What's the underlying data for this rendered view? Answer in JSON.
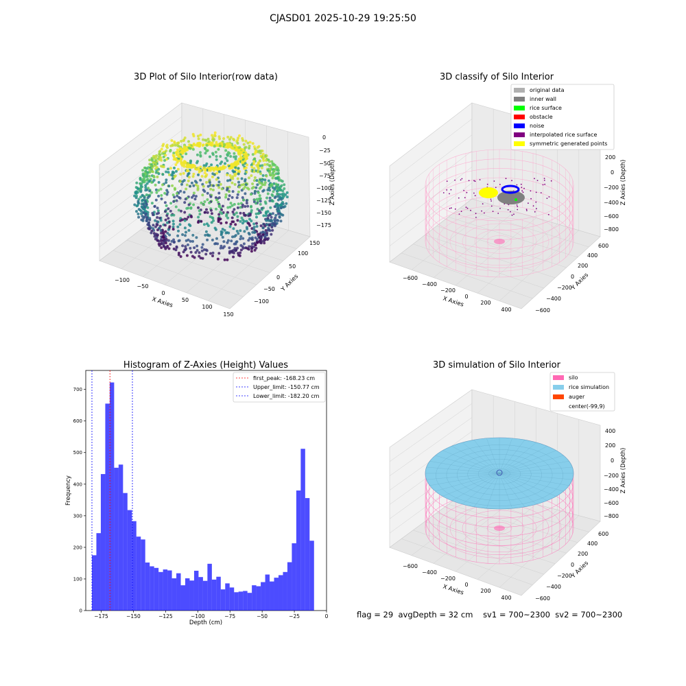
{
  "figure": {
    "suptitle": "CJASD01 2025-10-29 19:25:50"
  },
  "chart_data": [
    {
      "type": "scatter",
      "title": "3D Plot of Silo Interior(row data)",
      "xlabel": "X Axies",
      "ylabel": "Y Axies",
      "zlabel": "Z Axies (Depth)",
      "xticks": [
        "−100",
        "−50",
        "0",
        "50",
        "100",
        "150"
      ],
      "yticks": [
        "−100",
        "−50",
        "0",
        "50",
        "100",
        "150"
      ],
      "zticks": [
        "0",
        "−25",
        "−50",
        "−75",
        "−100",
        "−125",
        "−150",
        "−175"
      ],
      "zrange": [
        -185,
        0
      ],
      "colormap": "viridis"
    },
    {
      "type": "scatter",
      "title": "3D classify of Silo Interior",
      "xlabel": "X Axies",
      "ylabel": "Y Axies",
      "zlabel": "Z Axies (Depth)",
      "xticks": [
        "−600",
        "−400",
        "−200",
        "0",
        "200",
        "400"
      ],
      "yticks": [
        "−600",
        "−400",
        "−200",
        "0",
        "200",
        "400",
        "600"
      ],
      "zticks": [
        "200",
        "0",
        "−200",
        "−400",
        "−600",
        "−800"
      ],
      "legend": [
        {
          "label": "original data",
          "color": "#b0b0b0"
        },
        {
          "label": "inner wall",
          "color": "#808080"
        },
        {
          "label": "rice surface",
          "color": "#00ff00"
        },
        {
          "label": "obstacle",
          "color": "#ff0000"
        },
        {
          "label": "noise",
          "color": "#0000ff"
        },
        {
          "label": "interpolated rice surface",
          "color": "#800080"
        },
        {
          "label": "symmetric generated points",
          "color": "#ffff00"
        }
      ],
      "legend_position": "upper-right"
    },
    {
      "type": "bar",
      "title": "Histogram of Z-Axies (Height) Values",
      "xlabel": "Depth (cm)",
      "ylabel": "Frequency",
      "xlim": [
        -187,
        0
      ],
      "ylim": [
        0,
        760
      ],
      "xticks": [
        -175,
        -150,
        -125,
        -100,
        -75,
        -50,
        -25,
        0
      ],
      "xtick_labels": [
        "−175",
        "−150",
        "−125",
        "−100",
        "−75",
        "−50",
        "−25",
        "0"
      ],
      "yticks": [
        0,
        100,
        200,
        300,
        400,
        500,
        600,
        700
      ],
      "bin_start": -182.2,
      "bin_width": 3.45,
      "values": [
        175,
        245,
        432,
        655,
        722,
        452,
        462,
        372,
        318,
        283,
        234,
        225,
        152,
        140,
        135,
        122,
        130,
        127,
        102,
        118,
        80,
        102,
        95,
        126,
        106,
        94,
        148,
        98,
        107,
        67,
        86,
        73,
        58,
        60,
        62,
        56,
        80,
        77,
        90,
        114,
        92,
        104,
        112,
        122,
        153,
        213,
        380,
        512,
        356,
        221
      ],
      "bar_color": "#0000ff",
      "vlines": [
        {
          "x": -168.23,
          "color": "#ff0000",
          "label": "first_peak: -168.23 cm"
        },
        {
          "x": -150.77,
          "color": "#0000ff",
          "label": "Upper_limit: -150.77 cm"
        },
        {
          "x": -182.2,
          "color": "#0000ff",
          "label": "Lower_limit: -182.20 cm"
        }
      ],
      "legend_position": "upper-right"
    },
    {
      "type": "other",
      "title": "3D simulation of Silo Interior",
      "xlabel": "X Axies",
      "ylabel": "Y Axies",
      "zlabel": "Z Axies (Depth)",
      "xticks": [
        "−600",
        "−400",
        "−200",
        "0",
        "200",
        "400"
      ],
      "yticks": [
        "−600",
        "−400",
        "−200",
        "0",
        "200",
        "400",
        "600"
      ],
      "zticks": [
        "400",
        "200",
        "0",
        "−200",
        "−400",
        "−600",
        "−800"
      ],
      "legend": [
        {
          "label": "silo",
          "color": "#ff69b4"
        },
        {
          "label": "rice simulation",
          "color": "#87ceeb"
        },
        {
          "label": "auger",
          "color": "#ff4500"
        },
        {
          "label": "center(-99,9)",
          "color": "none"
        }
      ],
      "legend_position": "upper-right"
    }
  ],
  "status": {
    "flag": "flag = 29",
    "avg_depth": "avgDepth = 32 cm",
    "sv1": "sv1 = 700~2300",
    "sv2": "sv2 = 700~2300"
  }
}
